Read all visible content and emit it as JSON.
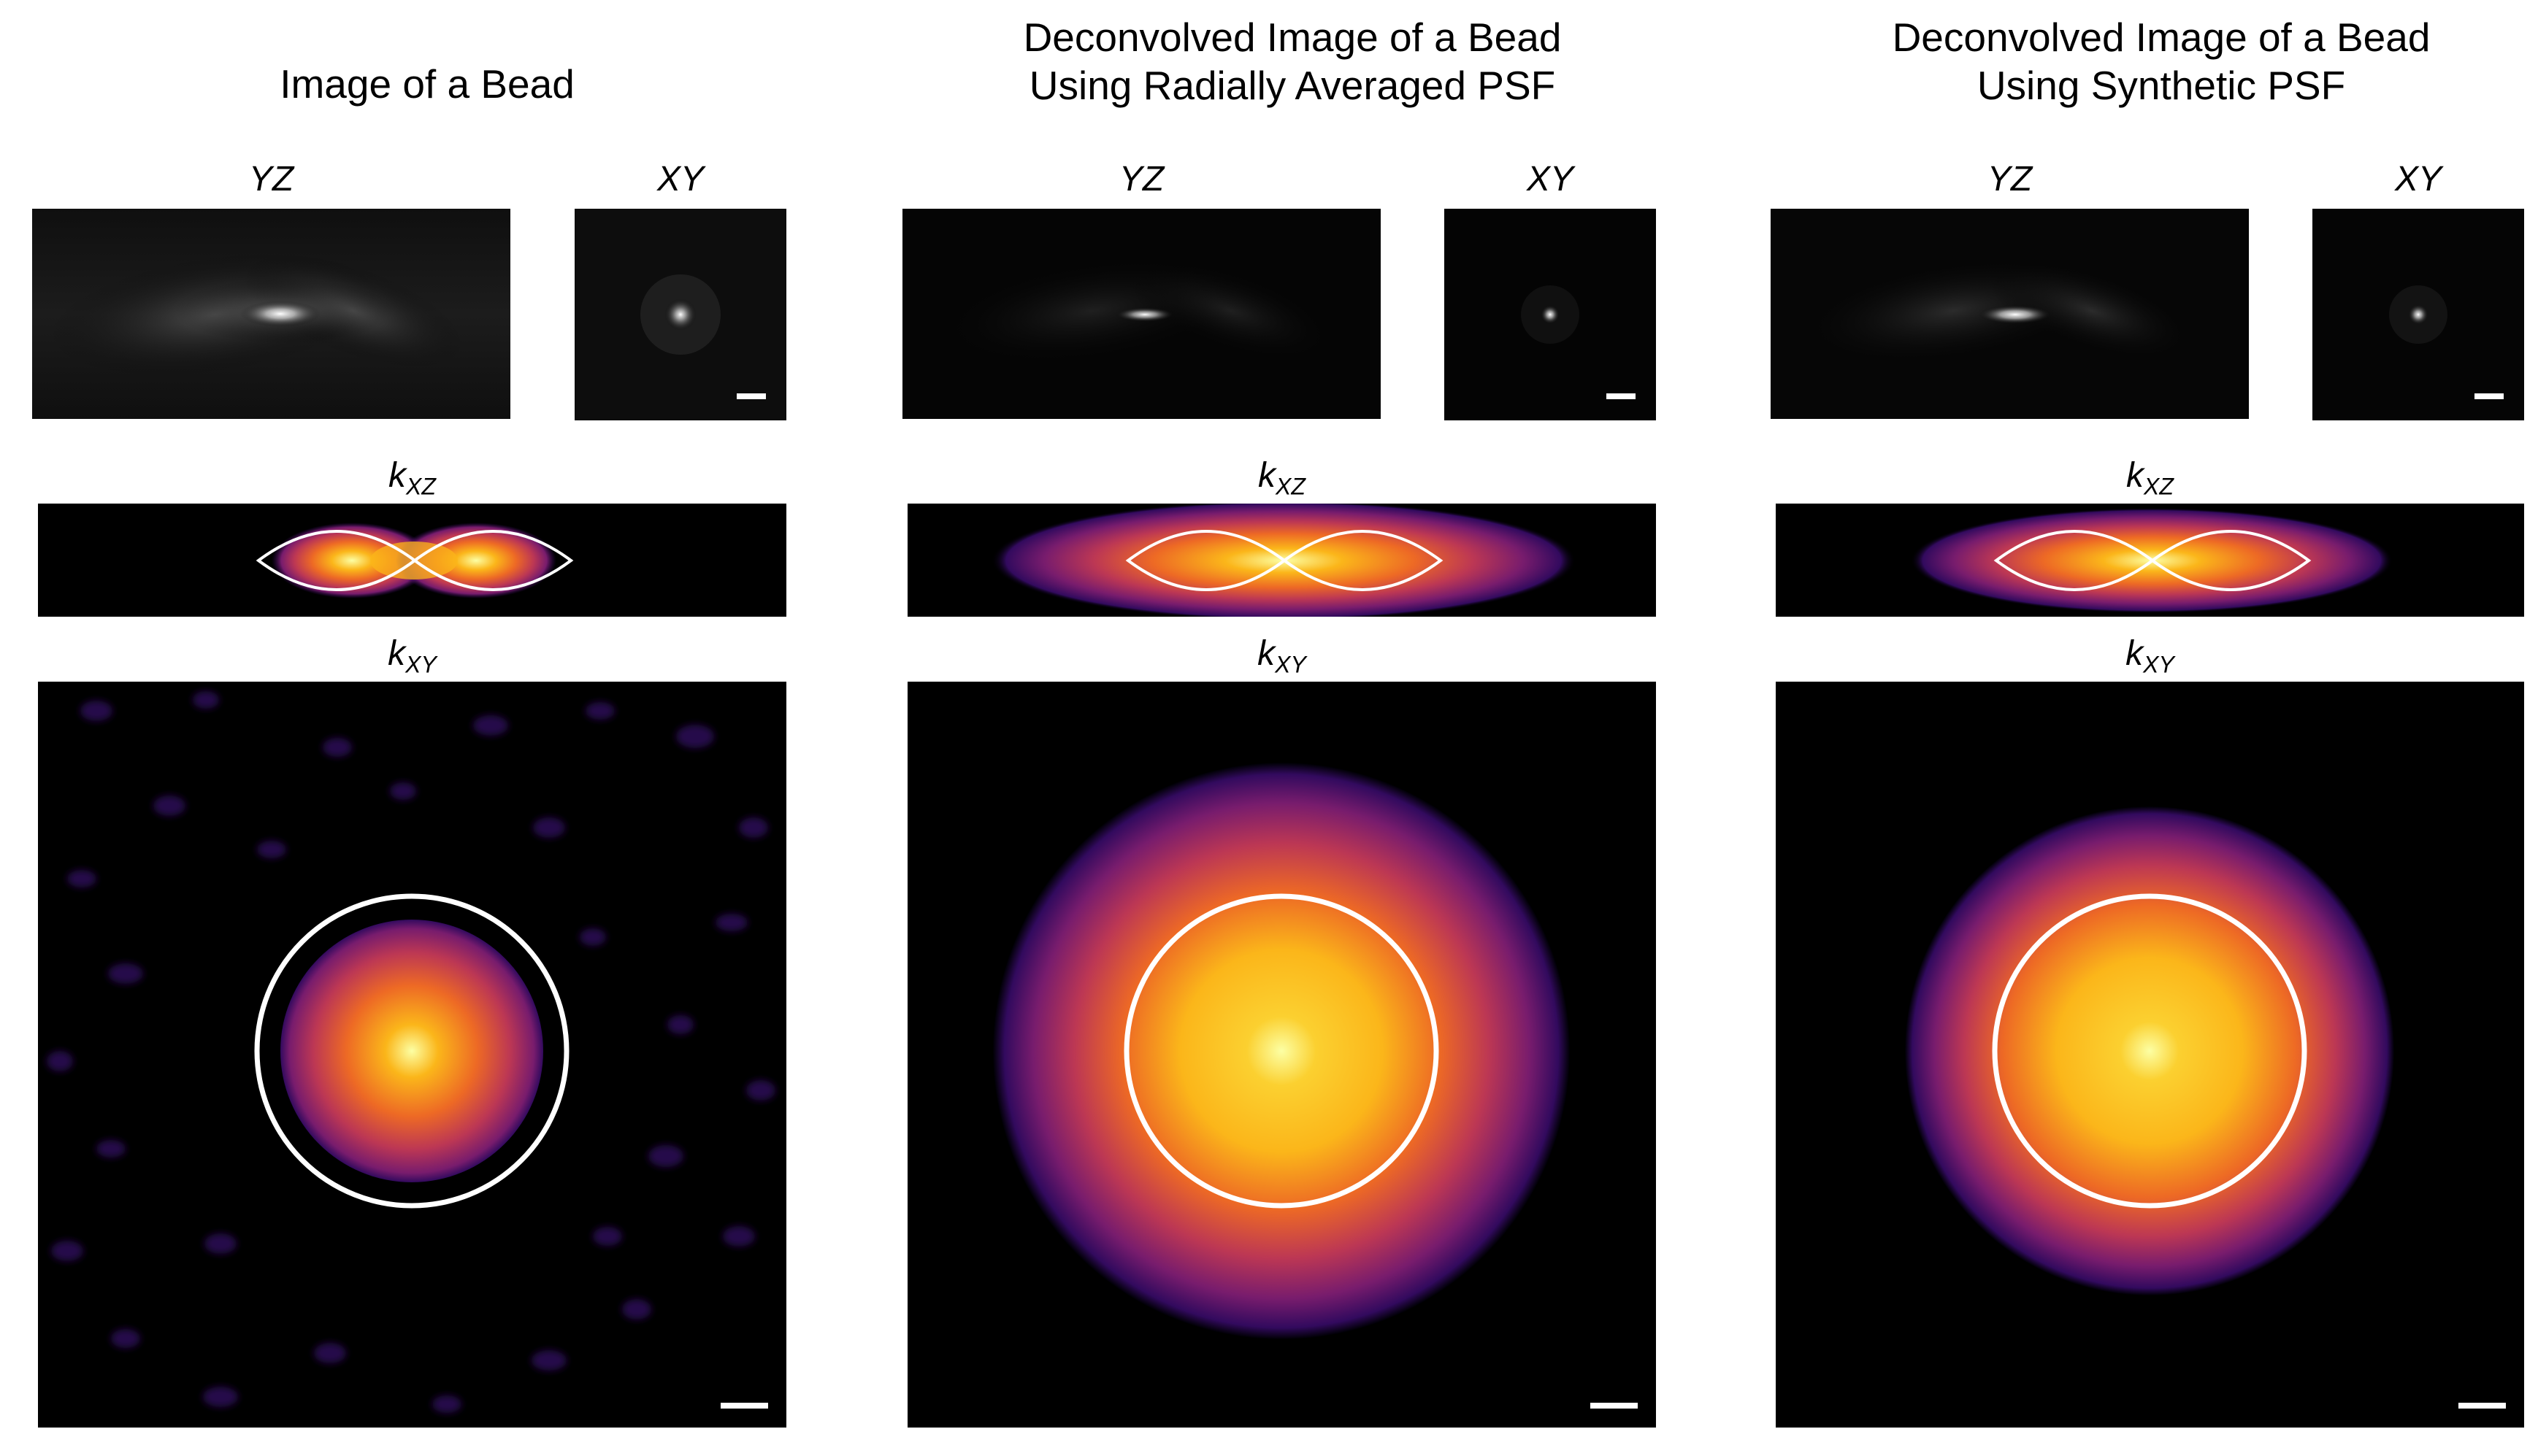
{
  "columns": [
    {
      "title": "Image of a Bead",
      "yz_label": "YZ",
      "xy_label": "XY",
      "kxz_label": {
        "base": "k",
        "sub": "XZ"
      },
      "kxy_label": {
        "base": "k",
        "sub": "XY"
      },
      "kxz_variant": "raw",
      "kxy_variant": "raw"
    },
    {
      "title": "Deconvolved Image of a Bead\nUsing Radially Averaged PSF",
      "yz_label": "YZ",
      "xy_label": "XY",
      "kxz_label": {
        "base": "k",
        "sub": "XZ"
      },
      "kxy_label": {
        "base": "k",
        "sub": "XY"
      },
      "kxz_variant": "wide",
      "kxy_variant": "wide"
    },
    {
      "title": "Deconvolved Image of a Bead\nUsing Synthetic PSF",
      "yz_label": "YZ",
      "xy_label": "XY",
      "kxz_label": {
        "base": "k",
        "sub": "XZ"
      },
      "kxy_label": {
        "base": "k",
        "sub": "XY"
      },
      "kxz_variant": "medium",
      "kxy_variant": "medium"
    }
  ],
  "colors": {
    "background": "#000000",
    "overlay": "#ffffff",
    "inferno": [
      "#000004",
      "#320a5e",
      "#781c6d",
      "#bc3754",
      "#ed6925",
      "#fbb61a",
      "#fcffa4"
    ]
  }
}
